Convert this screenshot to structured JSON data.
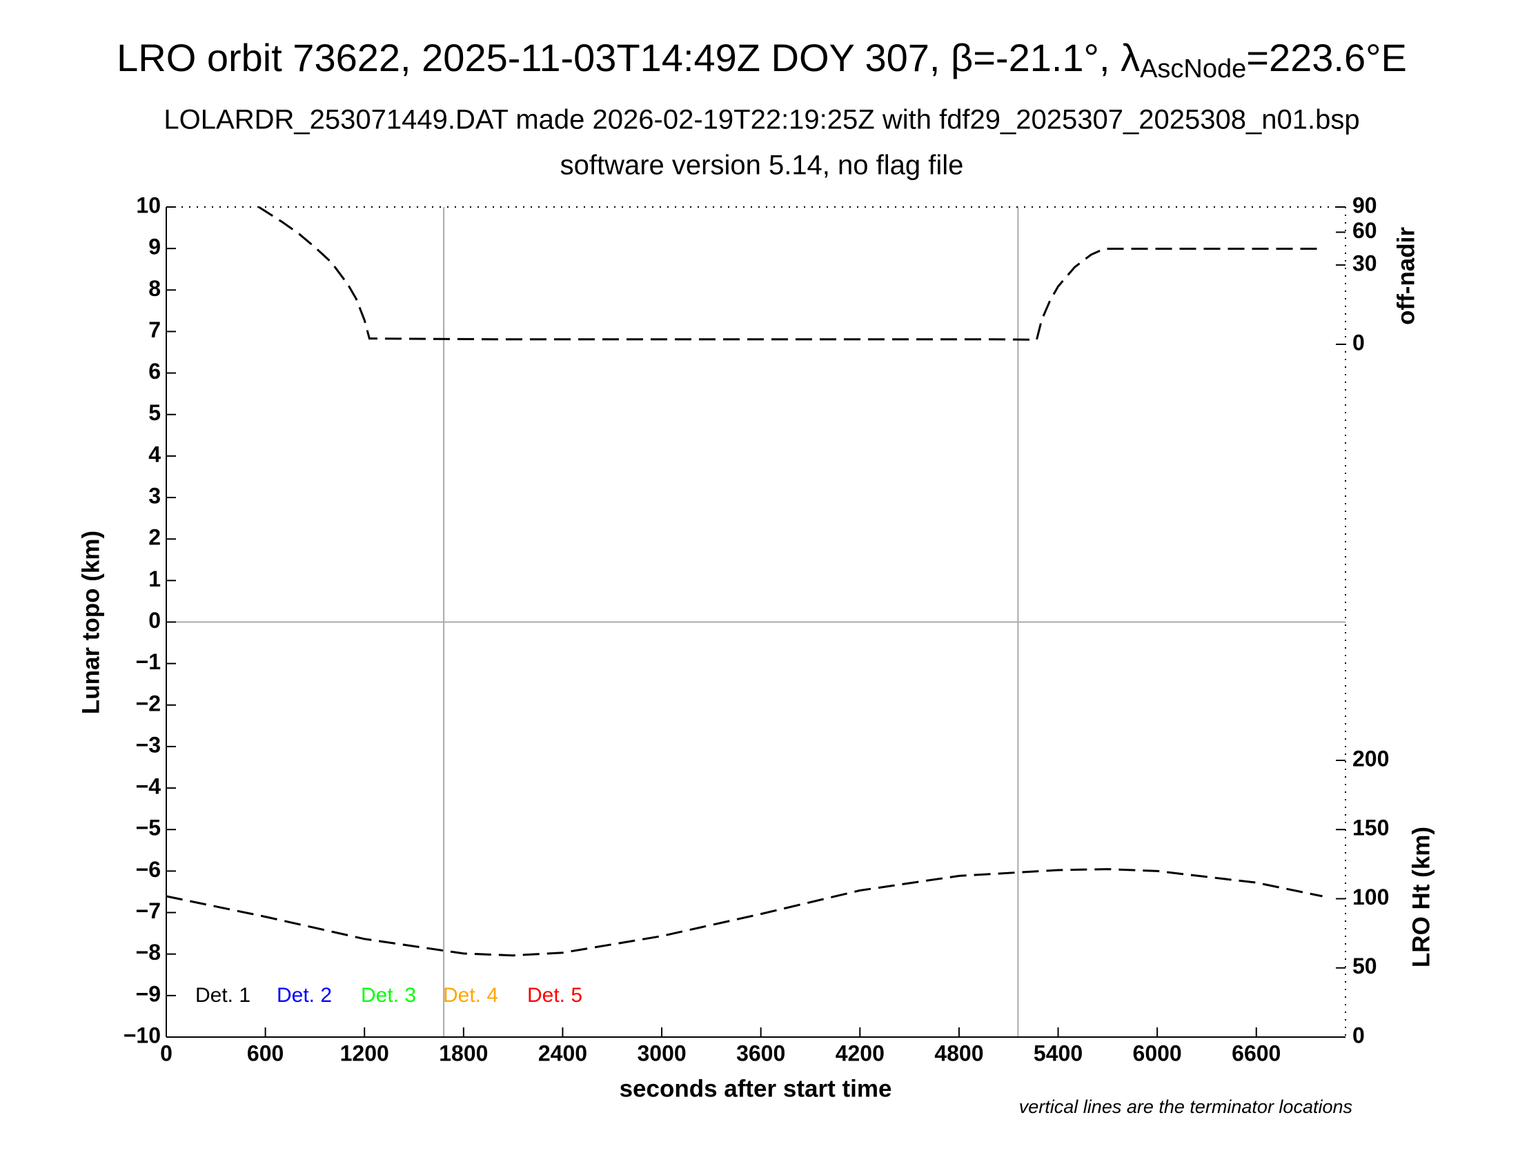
{
  "chart_data": {
    "type": "line",
    "title_parts": [
      "LRO orbit 73622, 2025-11-03T14:49Z DOY 307, β=-21.1°, λ",
      "AscNode",
      "=223.6°E"
    ],
    "subtitle": "LOLARDR_253071449.DAT made 2026-02-19T22:19:25Z with fdf29_2025307_2025308_n01.bsp",
    "subtitle2": "software version 5.14, no flag file",
    "x_label": "seconds after start time",
    "y_label": "Lunar topo (km)",
    "y2_label": "off-nadir",
    "y3_label": "LRO Ht (km)",
    "note": "vertical lines are the terminator locations",
    "xlim": [
      0,
      7140
    ],
    "xticks": [
      0,
      600,
      1200,
      1800,
      2400,
      3000,
      3600,
      4200,
      4800,
      5400,
      6000,
      6600
    ],
    "ylim": [
      -10,
      10
    ],
    "yticks": [
      {
        "value": -10,
        "label": "−10"
      },
      {
        "value": -9,
        "label": "−9"
      },
      {
        "value": -8,
        "label": "−8"
      },
      {
        "value": -7,
        "label": "−7"
      },
      {
        "value": -6,
        "label": "−6"
      },
      {
        "value": -5,
        "label": "−5"
      },
      {
        "value": -4,
        "label": "−4"
      },
      {
        "value": -3,
        "label": "−3"
      },
      {
        "value": -2,
        "label": "−2"
      },
      {
        "value": -1,
        "label": "−1"
      },
      0,
      1,
      2,
      3,
      4,
      5,
      6,
      7,
      8,
      9,
      10
    ],
    "y2lim": [
      0,
      90
    ],
    "y2scale": "sqrt",
    "y2ticks": [
      0,
      30,
      60,
      90
    ],
    "y3lim": [
      0,
      600
    ],
    "y3ticks": [
      0,
      50,
      100,
      150,
      200
    ],
    "terminators": [
      1680,
      5157
    ],
    "hlines": [
      0
    ],
    "detectors": [
      {
        "name": "Det. 1",
        "color": "#000000"
      },
      {
        "name": "Det. 2",
        "color": "#0000ff"
      },
      {
        "name": "Det. 3",
        "color": "#00ff00"
      },
      {
        "name": "Det. 4",
        "color": "#ffa500"
      },
      {
        "name": "Det. 5",
        "color": "#ff0000"
      }
    ],
    "series": [
      {
        "axis": "y2",
        "color": "#000000",
        "x": [
          560,
          700,
          800,
          900,
          1000,
          1100,
          1150,
          1200,
          1230,
          1400,
          2000,
          3000,
          4000,
          5000,
          5270,
          5300,
          5350,
          5400,
          5500,
          5600,
          5680,
          6000,
          6500,
          7000
        ],
        "values": [
          90,
          71.7,
          58.8,
          45,
          32,
          17,
          9.8,
          2.8,
          0.16,
          0.15,
          0.12,
          0.12,
          0.12,
          0.12,
          0.1,
          2.8,
          9,
          16,
          28.4,
          38.4,
          43.6,
          43.6,
          43.6,
          43.6
        ]
      },
      {
        "axis": "y3",
        "color": "#000000",
        "x": [
          0,
          600,
          1200,
          1800,
          2100,
          2400,
          3000,
          3600,
          4200,
          4800,
          5400,
          5700,
          6000,
          6600,
          7000
        ],
        "values": [
          101.8,
          87,
          70.9,
          60.4,
          59,
          61,
          73,
          89,
          106,
          116.5,
          120.7,
          121.4,
          120,
          111.6,
          101.8
        ]
      }
    ]
  }
}
